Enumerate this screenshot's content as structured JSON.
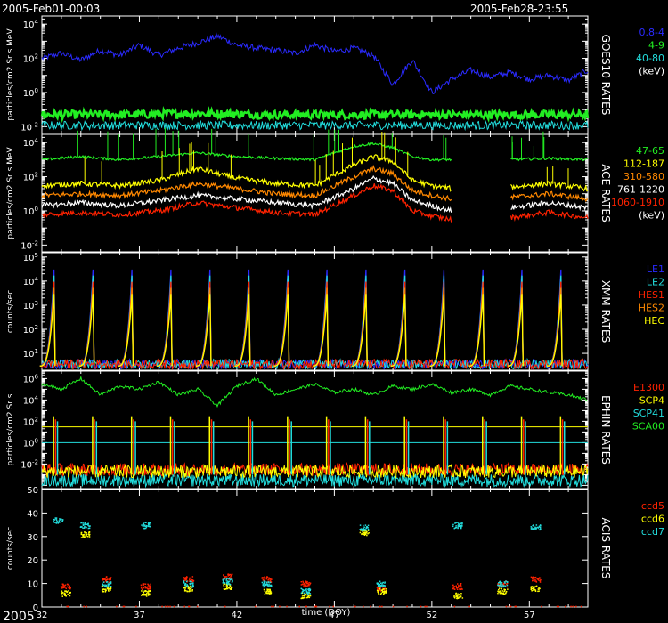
{
  "header": {
    "start": "2005-Feb01-00:03",
    "end": "2005-Feb28-23:55"
  },
  "footer": {
    "year": "2005",
    "xlabel": "time (DOY)"
  },
  "colors": {
    "background": "#000000",
    "axis": "#ffffff",
    "blue": "#2a2aff",
    "green": "#22ee22",
    "cyan": "#22dddd",
    "yellow": "#ffff00",
    "orange": "#ff8800",
    "red": "#ff2200",
    "white": "#ffffff",
    "sblue": "#3355ff"
  },
  "chart_data": [
    {
      "type": "line",
      "panel": "goes",
      "title": "GOES10 RATES",
      "ylabel": "particles/cm2 Sr s MeV",
      "yscale": "log",
      "ylim": [
        0.004,
        30000
      ],
      "yticks": [
        "10^4",
        "10^2",
        "10^0",
        "10^-2"
      ],
      "xlim": [
        32,
        60
      ],
      "legend": [
        {
          "label": "0.8-4",
          "color": "#2a2aff"
        },
        {
          "label": "4-9",
          "color": "#22ee22"
        },
        {
          "label": "40-80",
          "color": "#22dddd"
        },
        {
          "label": "(keV)",
          "color": "#ffffff"
        }
      ],
      "series": [
        {
          "name": "0.8-4",
          "color": "#2a2aff",
          "x": [
            32,
            33,
            34,
            35,
            36,
            37,
            38,
            39,
            40,
            41,
            42,
            43,
            44,
            45,
            46,
            47,
            48,
            49,
            50,
            51,
            52,
            53,
            54,
            55,
            56,
            57,
            58,
            59,
            60
          ],
          "y": [
            100,
            200,
            80,
            300,
            150,
            600,
            150,
            400,
            800,
            2000,
            600,
            400,
            300,
            200,
            600,
            250,
            400,
            150,
            3,
            80,
            1,
            6,
            20,
            8,
            15,
            6,
            10,
            5,
            20
          ]
        },
        {
          "name": "4-9",
          "color": "#22ee22",
          "x": [
            32,
            36,
            40,
            44,
            48,
            52,
            56,
            60
          ],
          "y": [
            0.05,
            0.05,
            0.06,
            0.05,
            0.05,
            0.05,
            0.05,
            0.05
          ]
        },
        {
          "name": "40-80",
          "color": "#22dddd",
          "x": [
            32,
            36,
            40,
            44,
            48,
            52,
            56,
            60
          ],
          "y": [
            0.012,
            0.012,
            0.012,
            0.012,
            0.012,
            0.012,
            0.012,
            0.012
          ]
        }
      ]
    },
    {
      "type": "line",
      "panel": "ace",
      "title": "ACE RATES",
      "ylabel": "particles/cm2 Sr s MeV",
      "yscale": "log",
      "ylim": [
        0.004,
        30000
      ],
      "yticks": [
        "10^4",
        "10^2",
        "10^0",
        "10^-2"
      ],
      "xlim": [
        32,
        60
      ],
      "legend": [
        {
          "label": "47-65",
          "color": "#22ee22"
        },
        {
          "label": "112-187",
          "color": "#ffff00"
        },
        {
          "label": "310-580",
          "color": "#ff8800"
        },
        {
          "label": "761-1220",
          "color": "#ffffff"
        },
        {
          "label": "1060-1910",
          "color": "#ff2200"
        },
        {
          "label": "(keV)",
          "color": "#ffffff"
        }
      ],
      "series": [
        {
          "name": "47-65",
          "color": "#22ee22",
          "x": [
            32,
            34,
            36,
            38,
            40,
            42,
            44,
            46,
            48,
            49,
            50,
            51,
            52,
            53,
            54,
            56,
            58,
            60
          ],
          "y": [
            1000,
            1500,
            1000,
            1500,
            2500,
            1500,
            1200,
            1000,
            6000,
            9000,
            5000,
            1500,
            1000,
            1000,
            null,
            1000,
            1200,
            1000
          ]
        },
        {
          "name": "112-187",
          "color": "#ffff00",
          "x": [
            32,
            34,
            36,
            38,
            40,
            42,
            44,
            46,
            48,
            49,
            50,
            51,
            52,
            53,
            54,
            56,
            58,
            60
          ],
          "y": [
            30,
            40,
            30,
            60,
            300,
            80,
            40,
            30,
            500,
            1500,
            800,
            60,
            30,
            20,
            null,
            25,
            40,
            20
          ]
        },
        {
          "name": "310-580",
          "color": "#ff8800",
          "x": [
            32,
            34,
            36,
            38,
            40,
            42,
            44,
            46,
            48,
            49,
            50,
            51,
            52,
            53,
            54,
            56,
            58,
            60
          ],
          "y": [
            8,
            10,
            8,
            15,
            40,
            20,
            10,
            8,
            100,
            300,
            150,
            15,
            8,
            5,
            null,
            6,
            10,
            5
          ]
        },
        {
          "name": "761-1220",
          "color": "#ffffff",
          "x": [
            32,
            34,
            36,
            38,
            40,
            42,
            44,
            46,
            48,
            49,
            50,
            51,
            52,
            53,
            54,
            56,
            58,
            60
          ],
          "y": [
            2,
            3,
            2,
            4,
            8,
            5,
            3,
            2,
            20,
            80,
            40,
            4,
            2,
            1,
            null,
            1.5,
            3,
            1.5
          ]
        },
        {
          "name": "1060-1910",
          "color": "#ff2200",
          "x": [
            32,
            34,
            36,
            38,
            40,
            42,
            44,
            46,
            48,
            49,
            50,
            51,
            52,
            53,
            54,
            56,
            58,
            60
          ],
          "y": [
            0.6,
            0.8,
            0.6,
            1,
            3,
            1.5,
            0.8,
            0.6,
            8,
            30,
            15,
            1,
            0.5,
            0.3,
            null,
            0.4,
            0.8,
            0.4
          ]
        }
      ]
    },
    {
      "type": "line",
      "panel": "xmm",
      "title": "XMM RATES",
      "ylabel": "counts/sec",
      "yscale": "log",
      "ylim": [
        2,
        150000
      ],
      "yticks": [
        "10^5",
        "10^4",
        "10^3",
        "10^2",
        "10^1"
      ],
      "xlim": [
        32,
        60
      ],
      "legend": [
        {
          "label": "LE1",
          "color": "#2a2aff"
        },
        {
          "label": "LE2",
          "color": "#22dddd"
        },
        {
          "label": "HES1",
          "color": "#ff2200"
        },
        {
          "label": "HES2",
          "color": "#ff8800"
        },
        {
          "label": "HEC",
          "color": "#ffff00"
        }
      ],
      "orbit_peaks_doy": [
        32.6,
        34.6,
        36.6,
        38.6,
        40.6,
        42.6,
        44.6,
        46.6,
        48.6,
        50.6,
        52.6,
        54.6,
        56.6,
        58.6
      ],
      "peak_count_rate": 100000,
      "baseline_count_rate": 3
    },
    {
      "type": "line",
      "panel": "ephin",
      "title": "EPHIN RATES",
      "ylabel": "particles/cm2 Sr s",
      "yscale": "log",
      "ylim": [
        5e-05,
        5000000
      ],
      "yticks": [
        "10^6",
        "10^4",
        "10^2",
        "10^0",
        "10^-2"
      ],
      "xlim": [
        32,
        60
      ],
      "legend": [
        {
          "label": "E1300",
          "color": "#ff2200"
        },
        {
          "label": "SCP4",
          "color": "#ffff00"
        },
        {
          "label": "SCP41",
          "color": "#22dddd"
        },
        {
          "label": "SCA00",
          "color": "#22ee22"
        }
      ],
      "thresholds": [
        {
          "value": 30,
          "color": "#ffff00"
        },
        {
          "value": 1,
          "color": "#22dddd"
        }
      ],
      "series": [
        {
          "name": "SCA00",
          "color": "#22ee22",
          "x": [
            32,
            33,
            34,
            35,
            36,
            37,
            38,
            39,
            40,
            41,
            42,
            43,
            44,
            45,
            46,
            47,
            48,
            49,
            50,
            51,
            52,
            53,
            54,
            55,
            56,
            57,
            58,
            59,
            60
          ],
          "y": [
            300000,
            100000,
            1000000,
            30000,
            200000,
            100000,
            500000,
            30000,
            100000,
            3000,
            200000,
            1000000,
            30000,
            100000,
            300000,
            50000,
            100000,
            30000,
            200000,
            100000,
            300000,
            50000,
            100000,
            30000,
            200000,
            100000,
            50000,
            30000,
            10000
          ]
        }
      ]
    },
    {
      "type": "scatter",
      "panel": "acis",
      "title": "ACIS RATES",
      "ylabel": "counts/sec",
      "yscale": "linear",
      "ylim": [
        0,
        50
      ],
      "yticks": [
        0,
        10,
        20,
        30,
        40,
        50
      ],
      "xlim": [
        32,
        60
      ],
      "xticks": [
        32,
        37,
        42,
        47,
        52,
        57
      ],
      "legend": [
        {
          "label": "ccd5",
          "color": "#ff2200"
        },
        {
          "label": "ccd6",
          "color": "#ffff00"
        },
        {
          "label": "ccd7",
          "color": "#22dddd"
        }
      ],
      "series": [
        {
          "name": "ccd5",
          "color": "#ff2200",
          "x": [
            33.2,
            35.3,
            37.3,
            39.5,
            41.5,
            43.5,
            45.5,
            49.4,
            53.3,
            55.6,
            57.3
          ],
          "y": [
            9,
            12,
            9,
            12,
            13,
            12,
            10,
            8,
            9,
            10,
            12
          ]
        },
        {
          "name": "ccd6",
          "color": "#ffff00",
          "x": [
            33.2,
            34.2,
            35.3,
            37.3,
            39.5,
            41.5,
            43.5,
            45.5,
            48.5,
            49.4,
            53.3,
            55.6,
            57.3
          ],
          "y": [
            6,
            31,
            8,
            6,
            8,
            9,
            7,
            5,
            32,
            7,
            5,
            7,
            8
          ]
        },
        {
          "name": "ccd7",
          "color": "#22dddd",
          "x": [
            32.8,
            34.2,
            35.3,
            37.3,
            39.5,
            41.5,
            43.5,
            45.5,
            48.5,
            49.4,
            53.3,
            55.6,
            57.3
          ],
          "y": [
            37,
            35,
            10,
            35,
            10,
            11,
            10,
            7,
            34,
            10,
            35,
            10,
            34
          ]
        }
      ]
    }
  ]
}
